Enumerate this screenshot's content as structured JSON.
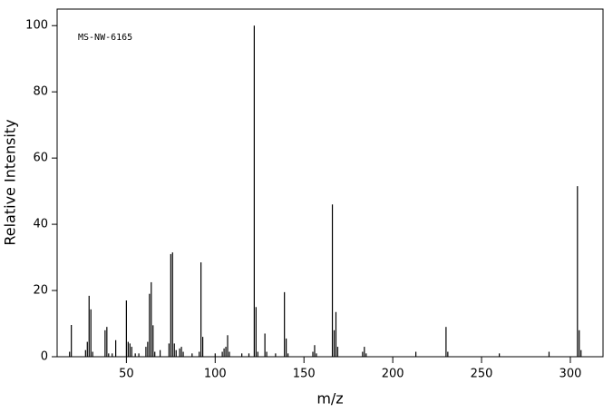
{
  "chart_data": {
    "type": "bar",
    "annotation": "MS-NW-6165",
    "x_label": "m/z",
    "y_label": "Relative Intensity",
    "color": "#000000",
    "x": [
      18,
      19,
      27,
      28,
      29,
      30,
      31,
      38,
      39,
      40,
      42,
      44,
      50,
      51,
      52,
      53,
      55,
      57,
      61,
      62,
      63,
      64,
      65,
      66,
      69,
      74,
      75,
      76,
      77,
      78,
      80,
      81,
      82,
      87,
      91,
      92,
      93,
      100,
      104,
      105,
      106,
      107,
      108,
      115,
      119,
      122,
      123,
      124,
      128,
      129,
      134,
      139,
      140,
      141,
      155,
      156,
      157,
      166,
      167,
      168,
      169,
      183,
      184,
      185,
      213,
      230,
      231,
      260,
      288,
      304,
      305,
      306
    ],
    "values": [
      1.5,
      9.6,
      2,
      4.5,
      18.4,
      14.3,
      1.5,
      8,
      9,
      1,
      1,
      5,
      17,
      4.5,
      4,
      3,
      1,
      1,
      3,
      4.5,
      19,
      22.5,
      9.5,
      1.5,
      2,
      4,
      31,
      31.5,
      4,
      2,
      2.5,
      3,
      1.5,
      1,
      1.5,
      28.5,
      6,
      1,
      1.5,
      2.5,
      3,
      6.5,
      1.5,
      1,
      1,
      100,
      15,
      1.5,
      7,
      1.5,
      1,
      19.5,
      5.5,
      1,
      1.5,
      3.5,
      1,
      46,
      8,
      13.5,
      3,
      1.5,
      3,
      1,
      1.5,
      9,
      1.5,
      1,
      1.5,
      51.5,
      8,
      2
    ],
    "xlim": [
      11,
      318.4
    ],
    "ylim": [
      0,
      105
    ],
    "xticks": [
      50,
      100,
      150,
      200,
      250,
      300
    ],
    "yticks": [
      0,
      20,
      40,
      60,
      80,
      100
    ]
  }
}
